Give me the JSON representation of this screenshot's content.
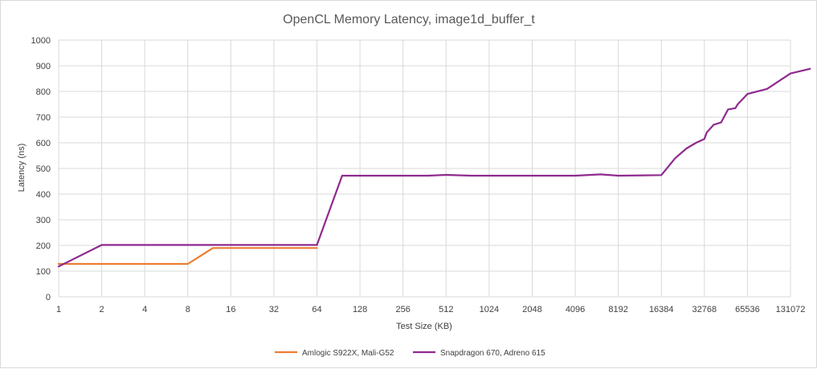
{
  "chart_data": {
    "type": "line",
    "title": "OpenCL Memory Latency, image1d_buffer_t",
    "xlabel": "Test Size (KB)",
    "ylabel": "Latency (ns)",
    "x_scale": "log2",
    "xlim": [
      1,
      131072
    ],
    "ylim": [
      0,
      1000
    ],
    "x_ticks": [
      1,
      2,
      4,
      8,
      16,
      32,
      64,
      128,
      256,
      512,
      1024,
      2048,
      4096,
      8192,
      16384,
      32768,
      65536,
      131072
    ],
    "y_ticks": [
      0,
      100,
      200,
      300,
      400,
      500,
      600,
      700,
      800,
      900,
      1000
    ],
    "grid": true,
    "legend_position": "bottom",
    "series": [
      {
        "name": "Amlogic S922X, Mali-G52",
        "color": "#ed7d31",
        "points": [
          [
            1,
            128
          ],
          [
            2,
            128
          ],
          [
            4,
            128
          ],
          [
            8,
            128
          ],
          [
            12,
            190
          ],
          [
            16,
            190
          ],
          [
            24,
            190
          ],
          [
            32,
            190
          ],
          [
            48,
            190
          ],
          [
            64,
            190
          ]
        ]
      },
      {
        "name": "Snapdragon 670, Adreno 615",
        "color": "#8e2a8e",
        "points": [
          [
            1,
            118
          ],
          [
            2,
            202
          ],
          [
            4,
            202
          ],
          [
            8,
            202
          ],
          [
            16,
            202
          ],
          [
            32,
            202
          ],
          [
            64,
            202
          ],
          [
            96,
            472
          ],
          [
            128,
            472
          ],
          [
            256,
            472
          ],
          [
            384,
            472
          ],
          [
            512,
            475
          ],
          [
            768,
            472
          ],
          [
            1024,
            472
          ],
          [
            2048,
            472
          ],
          [
            4096,
            472
          ],
          [
            6144,
            477
          ],
          [
            8192,
            472
          ],
          [
            12288,
            473
          ],
          [
            16384,
            474
          ],
          [
            20480,
            540
          ],
          [
            24576,
            578
          ],
          [
            28672,
            600
          ],
          [
            32768,
            615
          ],
          [
            34000,
            640
          ],
          [
            38000,
            670
          ],
          [
            43000,
            680
          ],
          [
            48000,
            730
          ],
          [
            54000,
            735
          ],
          [
            56000,
            750
          ],
          [
            65536,
            790
          ],
          [
            90000,
            810
          ],
          [
            131072,
            870
          ],
          [
            180000,
            888
          ]
        ]
      }
    ]
  }
}
